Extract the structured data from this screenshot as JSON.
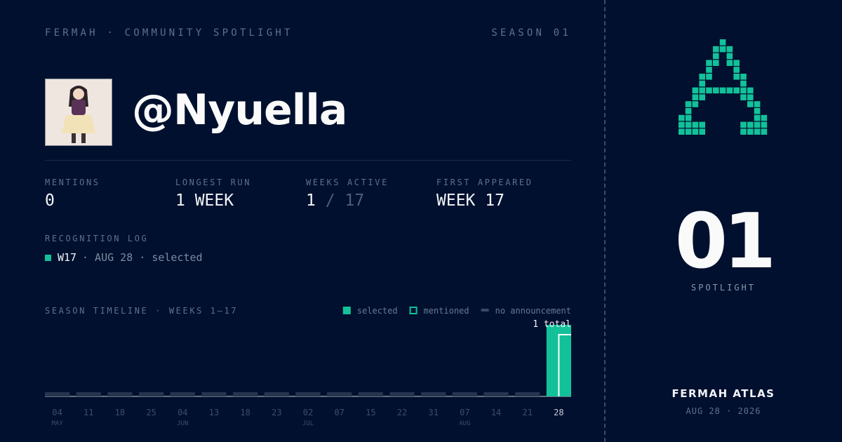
{
  "header": {
    "brand": "FERMAH · COMMUNITY SPOTLIGHT",
    "season": "SEASON 01"
  },
  "profile": {
    "handle": "@Nyuella"
  },
  "stats": [
    {
      "label": "MENTIONS",
      "value": "0"
    },
    {
      "label": "LONGEST RUN",
      "value": "1 WEEK"
    },
    {
      "label": "WEEKS ACTIVE",
      "value": "1",
      "total": "/ 17"
    },
    {
      "label": "FIRST APPEARED",
      "value": "WEEK 17"
    }
  ],
  "log": {
    "title": "RECOGNITION LOG",
    "entries": [
      {
        "week": "W17",
        "detail": "· AUG 28 · selected"
      }
    ]
  },
  "timeline": {
    "title": "SEASON TIMELINE · WEEKS 1–17",
    "legend": [
      {
        "label": "selected",
        "status": "selected"
      },
      {
        "label": "mentioned",
        "status": "mentioned"
      },
      {
        "label": "no announcement",
        "status": "none"
      }
    ],
    "total_label": "1 total",
    "weeks": [
      {
        "day": "04",
        "month": "MAY",
        "status": "none"
      },
      {
        "day": "11",
        "month": null,
        "status": "none"
      },
      {
        "day": "18",
        "month": null,
        "status": "none"
      },
      {
        "day": "25",
        "month": null,
        "status": "none"
      },
      {
        "day": "04",
        "month": "JUN",
        "status": "none"
      },
      {
        "day": "13",
        "month": null,
        "status": "none"
      },
      {
        "day": "18",
        "month": null,
        "status": "none"
      },
      {
        "day": "23",
        "month": null,
        "status": "none"
      },
      {
        "day": "02",
        "month": "JUL",
        "status": "none"
      },
      {
        "day": "07",
        "month": null,
        "status": "none"
      },
      {
        "day": "15",
        "month": null,
        "status": "none"
      },
      {
        "day": "22",
        "month": null,
        "status": "none"
      },
      {
        "day": "31",
        "month": null,
        "status": "none"
      },
      {
        "day": "07",
        "month": "AUG",
        "status": "none"
      },
      {
        "day": "14",
        "month": null,
        "status": "none"
      },
      {
        "day": "21",
        "month": null,
        "status": "none"
      },
      {
        "day": "28",
        "month": null,
        "status": "selected"
      }
    ]
  },
  "spotlight": {
    "number": "01",
    "label": "SPOTLIGHT"
  },
  "footer": {
    "name": "FERMAH ATLAS",
    "date": "AUG 28 · 2026"
  }
}
